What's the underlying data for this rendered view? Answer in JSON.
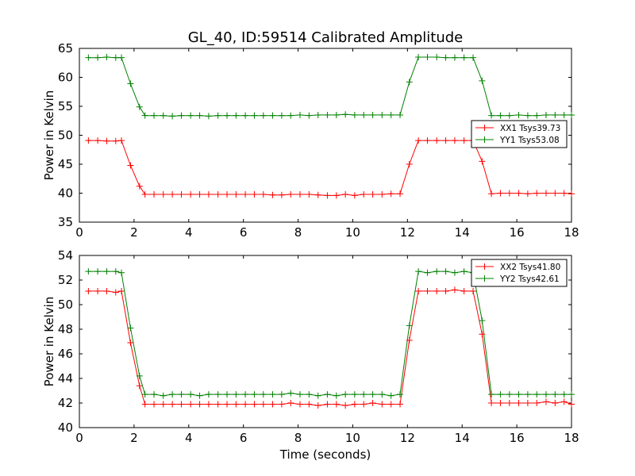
{
  "figure": {
    "title": "GL_40, ID:59514 Calibrated Amplitude"
  },
  "chart_data": [
    {
      "type": "line",
      "title": "GL_40, ID:59514 Calibrated Amplitude",
      "xlabel": "",
      "ylabel": "Power in Kelvin",
      "xlim": [
        0,
        18
      ],
      "ylim": [
        35,
        65
      ],
      "xticks": [
        "0",
        "2",
        "4",
        "6",
        "8",
        "10",
        "12",
        "14",
        "16",
        "18"
      ],
      "yticks": [
        "35",
        "40",
        "45",
        "50",
        "55",
        "60",
        "65"
      ],
      "grid": false,
      "legend_position": "center-right",
      "x": [
        0.33,
        0.67,
        1.0,
        1.33,
        1.54,
        1.87,
        2.2,
        2.4,
        2.73,
        3.07,
        3.4,
        3.73,
        4.07,
        4.4,
        4.73,
        5.07,
        5.4,
        5.73,
        6.07,
        6.4,
        6.73,
        7.07,
        7.4,
        7.73,
        8.07,
        8.4,
        8.73,
        9.07,
        9.4,
        9.73,
        10.07,
        10.4,
        10.73,
        11.07,
        11.4,
        11.73,
        12.07,
        12.4,
        12.73,
        13.07,
        13.4,
        13.73,
        14.07,
        14.4,
        14.73,
        15.07,
        15.4,
        15.73,
        16.07,
        16.4,
        16.73,
        17.07,
        17.4,
        17.73,
        18.0
      ],
      "series": [
        {
          "name": "XX1 Tsys39.73",
          "color": "#ff0000",
          "values": [
            49.1,
            49.1,
            49.0,
            49.0,
            49.1,
            44.8,
            41.2,
            39.8,
            39.8,
            39.8,
            39.8,
            39.8,
            39.8,
            39.8,
            39.8,
            39.8,
            39.8,
            39.8,
            39.8,
            39.8,
            39.8,
            39.7,
            39.7,
            39.8,
            39.8,
            39.8,
            39.7,
            39.6,
            39.6,
            39.8,
            39.6,
            39.8,
            39.8,
            39.8,
            39.9,
            39.9,
            45.0,
            49.1,
            49.1,
            49.1,
            49.1,
            49.1,
            49.1,
            49.1,
            45.5,
            39.9,
            40.0,
            40.0,
            40.0,
            39.9,
            40.0,
            40.0,
            40.0,
            40.0,
            39.9
          ]
        },
        {
          "name": "YY1 Tsys53.08",
          "color": "#008000",
          "values": [
            63.4,
            63.4,
            63.5,
            63.4,
            63.4,
            58.9,
            54.9,
            53.4,
            53.4,
            53.4,
            53.3,
            53.4,
            53.4,
            53.4,
            53.3,
            53.4,
            53.4,
            53.4,
            53.4,
            53.4,
            53.4,
            53.4,
            53.4,
            53.4,
            53.5,
            53.4,
            53.5,
            53.5,
            53.5,
            53.6,
            53.5,
            53.5,
            53.5,
            53.5,
            53.5,
            53.5,
            59.2,
            63.5,
            63.5,
            63.5,
            63.4,
            63.4,
            63.4,
            63.4,
            59.4,
            53.4,
            53.4,
            53.4,
            53.5,
            53.4,
            53.4,
            53.5,
            53.5,
            53.5,
            53.5
          ]
        }
      ]
    },
    {
      "type": "line",
      "title": "",
      "xlabel": "Time (seconds)",
      "ylabel": "Power in Kelvin",
      "xlim": [
        0,
        18
      ],
      "ylim": [
        40,
        54
      ],
      "xticks": [
        "0",
        "2",
        "4",
        "6",
        "8",
        "10",
        "12",
        "14",
        "16",
        "18"
      ],
      "yticks": [
        "40",
        "42",
        "44",
        "46",
        "48",
        "50",
        "52",
        "54"
      ],
      "grid": false,
      "legend_position": "top-right",
      "x": [
        0.33,
        0.67,
        1.0,
        1.33,
        1.54,
        1.87,
        2.2,
        2.4,
        2.73,
        3.07,
        3.4,
        3.73,
        4.07,
        4.4,
        4.73,
        5.07,
        5.4,
        5.73,
        6.07,
        6.4,
        6.73,
        7.07,
        7.4,
        7.73,
        8.07,
        8.4,
        8.73,
        9.07,
        9.4,
        9.73,
        10.07,
        10.4,
        10.73,
        11.07,
        11.4,
        11.73,
        12.07,
        12.4,
        12.73,
        13.07,
        13.4,
        13.73,
        14.07,
        14.4,
        14.73,
        15.07,
        15.4,
        15.73,
        16.07,
        16.4,
        16.73,
        17.07,
        17.4,
        17.73,
        18.0
      ],
      "series": [
        {
          "name": "XX2 Tsys41.80",
          "color": "#ff0000",
          "values": [
            51.1,
            51.1,
            51.1,
            51.0,
            51.1,
            46.9,
            43.4,
            41.9,
            41.9,
            41.9,
            41.9,
            41.9,
            41.9,
            41.9,
            41.9,
            41.9,
            41.9,
            41.9,
            41.9,
            41.9,
            41.9,
            41.9,
            41.9,
            42.0,
            41.9,
            41.9,
            41.8,
            41.9,
            41.9,
            41.8,
            41.9,
            41.9,
            42.0,
            41.9,
            41.9,
            41.9,
            47.1,
            51.1,
            51.1,
            51.1,
            51.1,
            51.2,
            51.1,
            51.1,
            47.6,
            42.0,
            42.0,
            42.0,
            42.0,
            42.0,
            42.0,
            42.1,
            42.0,
            42.1,
            41.9
          ]
        },
        {
          "name": "YY2 Tsys42.61",
          "color": "#008000",
          "values": [
            52.7,
            52.7,
            52.7,
            52.7,
            52.6,
            48.1,
            44.2,
            42.7,
            42.7,
            42.6,
            42.7,
            42.7,
            42.7,
            42.6,
            42.7,
            42.7,
            42.7,
            42.7,
            42.7,
            42.7,
            42.7,
            42.7,
            42.7,
            42.8,
            42.7,
            42.7,
            42.6,
            42.7,
            42.6,
            42.7,
            42.7,
            42.7,
            42.7,
            42.7,
            42.6,
            42.7,
            48.3,
            52.7,
            52.6,
            52.7,
            52.7,
            52.6,
            52.7,
            52.6,
            48.7,
            42.7,
            42.7,
            42.7,
            42.7,
            42.7,
            42.7,
            42.7,
            42.7,
            42.7,
            42.7
          ]
        }
      ]
    }
  ]
}
